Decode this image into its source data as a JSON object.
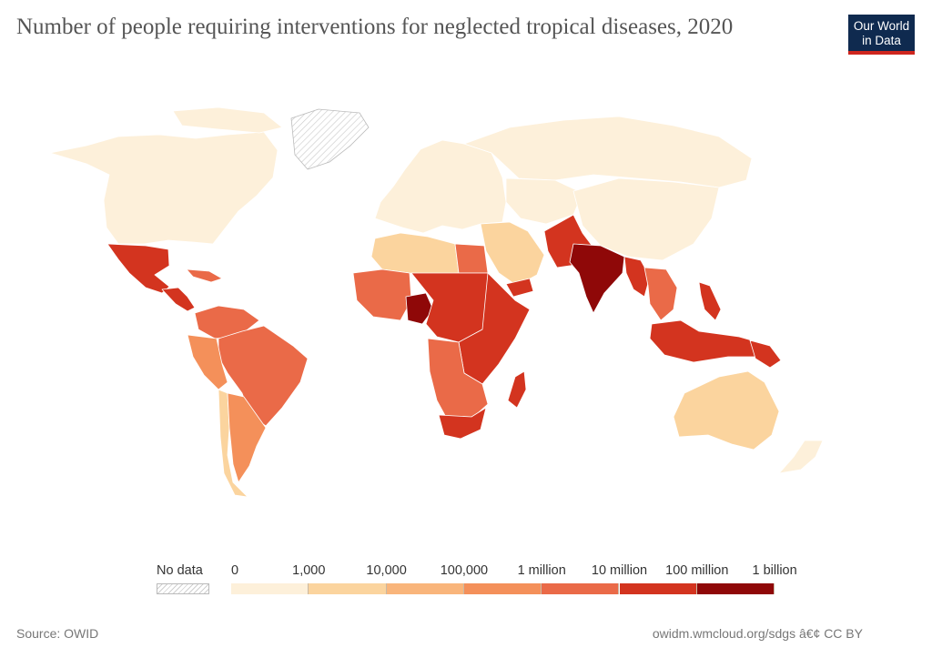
{
  "header": {
    "title": "Number of people requiring interventions for neglected tropical diseases, 2020",
    "logo_line1": "Our World",
    "logo_line2": "in Data"
  },
  "legend": {
    "no_data_label": "No data",
    "bins": [
      {
        "from": "0",
        "to": "1,000",
        "color": "#fdf0da"
      },
      {
        "from": "1,000",
        "to": "10,000",
        "color": "#fbd49e"
      },
      {
        "from": "10,000",
        "to": "100,000",
        "color": "#f9b57b"
      },
      {
        "from": "100,000",
        "to": "1 million",
        "color": "#f4905a"
      },
      {
        "from": "1 million",
        "to": "10 million",
        "color": "#ea6a48"
      },
      {
        "from": "10 million",
        "to": "100 million",
        "color": "#d3341f"
      },
      {
        "from": "100 million",
        "to": "1 billion",
        "color": "#8f0808"
      }
    ],
    "tick_labels": [
      "0",
      "1,000",
      "10,000",
      "100,000",
      "1 million",
      "10 million",
      "100 million",
      "1 billion"
    ]
  },
  "map_colors": {
    "north_america": "#fdf0da",
    "greenland_no_data": "hatched",
    "mexico": "#d3341f",
    "central_america": "#d3341f",
    "caribbean": "#ea6a48",
    "south_america_north": "#ea6a48",
    "brazil": "#ea6a48",
    "peru": "#f4905a",
    "chile": "#fbd49e",
    "argentina": "#f4905a",
    "europe": "#fdf0da",
    "russia": "#fdf0da",
    "north_africa": "#fbd49e",
    "egypt": "#ea6a48",
    "west_africa": "#ea6a48",
    "nigeria": "#8f0808",
    "central_africa": "#d3341f",
    "east_africa": "#d3341f",
    "southern_africa": "#ea6a48",
    "south_africa": "#d3341f",
    "madagascar": "#d3341f",
    "middle_east": "#fbd49e",
    "yemen": "#d3341f",
    "central_asia": "#fdf0da",
    "south_asia": "#d3341f",
    "india": "#8f0808",
    "china": "#fdf0da",
    "southeast_asia": "#ea6a48",
    "myanmar": "#d3341f",
    "indonesia": "#d3341f",
    "philippines": "#d3341f",
    "papua_new_guinea": "#d3341f",
    "australia": "#fbd49e",
    "new_zealand": "#fdf0da"
  },
  "footer": {
    "source": "Source: OWID",
    "url_license": "owidm.wmcloud.org/sdgs â€¢ CC BY"
  }
}
